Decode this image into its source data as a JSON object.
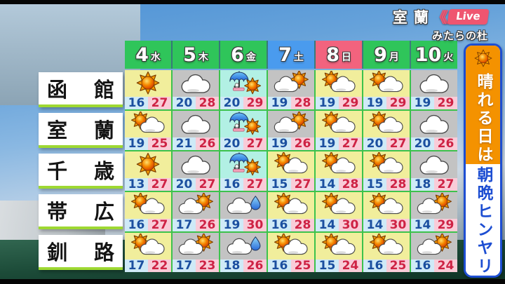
{
  "live_badge": {
    "location": "室蘭",
    "chevrons": "《《",
    "label": "Live",
    "subtitle": "みたらの杜"
  },
  "sidebar": {
    "top_text": "晴れる日は",
    "bottom_text": "朝晩ヒンヤリ"
  },
  "forecast": {
    "days": [
      {
        "label": "4",
        "weekday": "水",
        "color": "green"
      },
      {
        "label": "5",
        "weekday": "木",
        "color": "green"
      },
      {
        "label": "6",
        "weekday": "金",
        "color": "green"
      },
      {
        "label": "7",
        "weekday": "土",
        "color": "blue"
      },
      {
        "label": "8",
        "weekday": "日",
        "color": "red"
      },
      {
        "label": "9",
        "weekday": "月",
        "color": "green"
      },
      {
        "label": "10",
        "weekday": "火",
        "color": "green"
      }
    ]
  },
  "chart_data": {
    "type": "table",
    "columns": [
      "4水",
      "5木",
      "6金",
      "7土",
      "8日",
      "9月",
      "10火"
    ],
    "rows": [
      {
        "city": "函館",
        "icons": [
          "sun",
          "cloud",
          "umbrella-sun",
          "cloud-sun",
          "sun-cloud",
          "sun-cloud",
          "cloud"
        ],
        "min": [
          16,
          20,
          20,
          19,
          19,
          19,
          19
        ],
        "max": [
          27,
          28,
          29,
          28,
          29,
          29,
          29
        ]
      },
      {
        "city": "室蘭",
        "icons": [
          "sun-cloud",
          "cloud",
          "umbrella-sun",
          "cloud-sun",
          "sun-cloud",
          "sun-cloud",
          "cloud"
        ],
        "min": [
          19,
          21,
          20,
          19,
          19,
          20,
          20
        ],
        "max": [
          25,
          26,
          27,
          26,
          27,
          27,
          26
        ]
      },
      {
        "city": "千歳",
        "icons": [
          "sun",
          "cloud",
          "umbrella-sun",
          "sun-cloud",
          "sun-cloud",
          "sun-cloud",
          "cloud"
        ],
        "min": [
          13,
          20,
          16,
          15,
          14,
          15,
          18
        ],
        "max": [
          27,
          27,
          27,
          27,
          28,
          28,
          27
        ]
      },
      {
        "city": "帯広",
        "icons": [
          "sun-cloud",
          "cloud-sun",
          "cloud-rain",
          "sun-cloud",
          "sun-cloud",
          "sun-cloud",
          "cloud-sun"
        ],
        "min": [
          16,
          17,
          19,
          16,
          14,
          14,
          14
        ],
        "max": [
          27,
          26,
          30,
          28,
          30,
          30,
          29
        ]
      },
      {
        "city": "釧路",
        "icons": [
          "sun-cloud",
          "cloud-sun",
          "cloud-rain",
          "sun-cloud",
          "sun-cloud",
          "sun-cloud",
          "cloud-sun"
        ],
        "min": [
          17,
          17,
          18,
          16,
          15,
          16,
          16
        ],
        "max": [
          22,
          23,
          26,
          25,
          24,
          25,
          24
        ]
      }
    ]
  },
  "colors": {
    "day_green": "#2fc55a",
    "day_blue": "#4a9bee",
    "day_red": "#f2637e",
    "cell_sun_bg": "#f1ee9c",
    "cell_cloud_bg": "#c3c3c3",
    "cell_rain_bg": "#b2f0e4",
    "min_bg": "#cfeaf7",
    "min_text": "#1b4f9f",
    "max_bg": "#f9ccd8",
    "max_text": "#ce2244",
    "grid_green": "#3cc24c",
    "city_underline": "#9ed832",
    "sidebar_orange": "#f49200",
    "sidebar_blue": "#1d4ed2",
    "live_red": "#ef5570"
  }
}
